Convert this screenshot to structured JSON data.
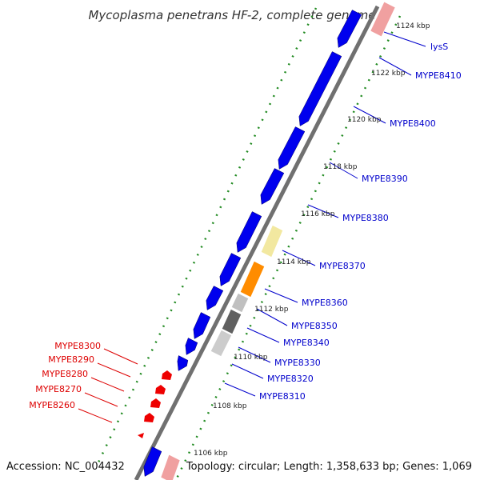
{
  "title": "Mycoplasma penetrans HF-2, complete genome",
  "footer": {
    "accession": "Accession: NC_004432",
    "topology": "Topology: circular; Length: 1,358,633 bp; Genes: 1,069"
  },
  "kbp_ticks": [
    "1124 kbp",
    "1122 kbp",
    "1120 kbp",
    "1118 kbp",
    "1116 kbp",
    "1114 kbp",
    "1112 kbp",
    "1110 kbp",
    "1108 kbp",
    "1106 kbp"
  ],
  "right_labels": [
    "lysS",
    "MYPE8410",
    "MYPE8400",
    "MYPE8390",
    "MYPE8380",
    "MYPE8370",
    "MYPE8360",
    "MYPE8350",
    "MYPE8340",
    "MYPE8330",
    "MYPE8320",
    "MYPE8310"
  ],
  "left_labels": [
    "MYPE8300",
    "MYPE8290",
    "MYPE8280",
    "MYPE8270",
    "MYPE8260"
  ],
  "colors": {
    "forward_gene": "#0000ee",
    "reverse_gene": "#ee0000",
    "trna": "#f0a0a0",
    "pale_yellow": "#f2e8a0",
    "orange": "#ff8c00",
    "light_gray": "#c0c0c0",
    "dark_gray": "#606060",
    "backbone": "#808080",
    "tick_dots": "#228b22",
    "right_label_color": "#0000cc",
    "left_label_color": "#dd0000"
  }
}
